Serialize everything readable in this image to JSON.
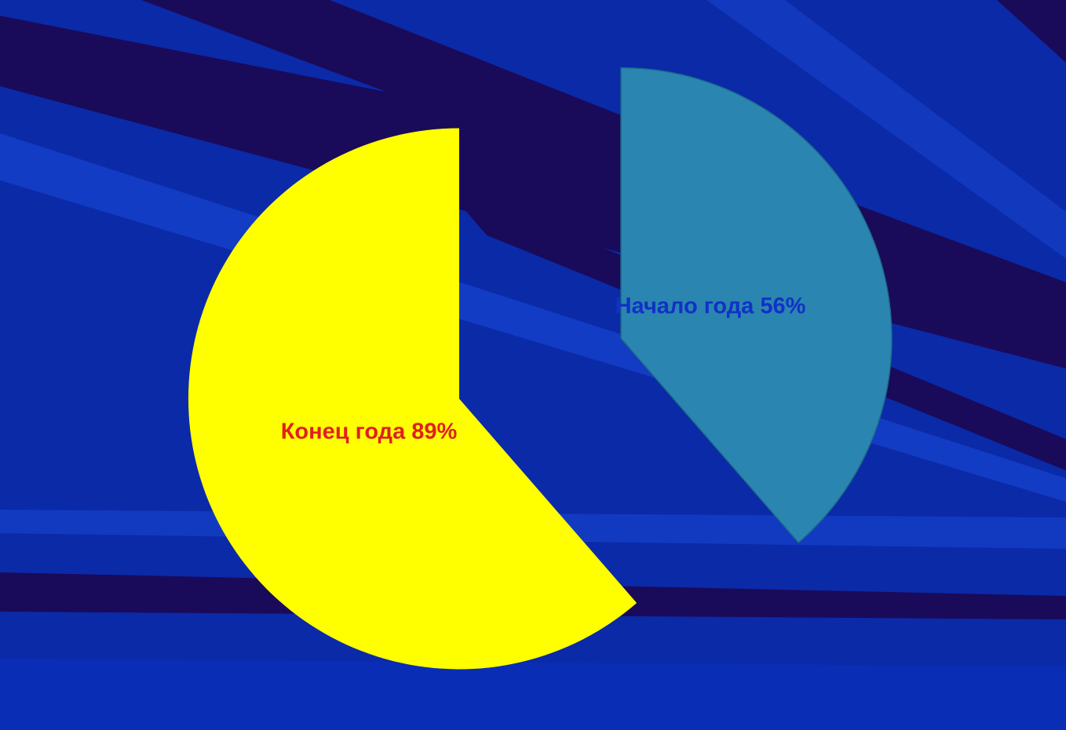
{
  "chart_data": {
    "type": "pie",
    "slices": [
      {
        "label": "Конец года 89%",
        "value": 89,
        "color": "#ffff00",
        "label_color": "#e02020"
      },
      {
        "label": "Начало года 56%",
        "value": 56,
        "color": "#2a86b0",
        "label_color": "#1230c8"
      }
    ]
  },
  "colors": {
    "background": "#0a2aa8",
    "stripe_dark": "#1a0a5a",
    "stripe_light": "#1a4ad8"
  }
}
